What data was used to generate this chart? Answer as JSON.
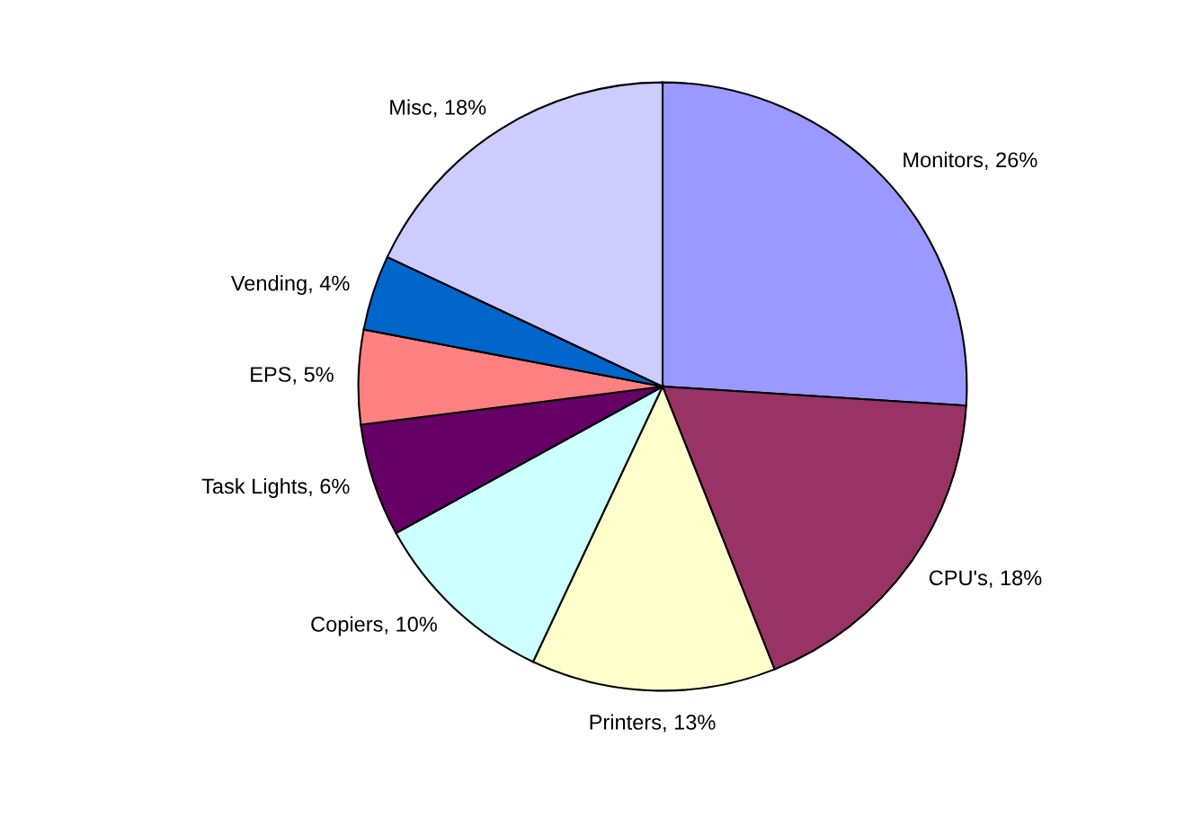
{
  "chart_data": {
    "type": "pie",
    "categories": [
      "Monitors",
      "CPU's",
      "Printers",
      "Copiers",
      "Task Lights",
      "EPS",
      "Vending",
      "Misc"
    ],
    "values": [
      26,
      18,
      13,
      10,
      6,
      5,
      4,
      18
    ],
    "value_labels": [
      "26%",
      "18%",
      "13%",
      "10%",
      "6%",
      "5%",
      "4%",
      "18%"
    ],
    "colors": [
      "#9999ff",
      "#993366",
      "#ffffcc",
      "#ccffff",
      "#660066",
      "#ff8080",
      "#0066cc",
      "#ccccff"
    ],
    "legend": false
  }
}
